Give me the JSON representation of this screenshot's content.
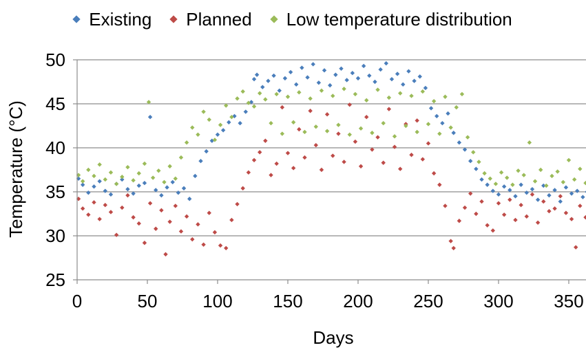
{
  "chart_data": {
    "type": "scatter",
    "title": "",
    "xlabel": "Days",
    "ylabel": "Temperature (°C)",
    "xlim": [
      0,
      365
    ],
    "ylim": [
      25,
      50
    ],
    "x_ticks": [
      0,
      50,
      100,
      150,
      200,
      250,
      300,
      350
    ],
    "y_ticks": [
      25,
      30,
      35,
      40,
      45,
      50
    ],
    "grid": "horizontal",
    "legend_position": "top",
    "series": [
      {
        "name": "Existing",
        "color": "#4a7ebb",
        "points": [
          [
            1,
            36.5
          ],
          [
            4,
            35.8
          ],
          [
            8,
            34.9
          ],
          [
            12,
            35.6
          ],
          [
            16,
            36.2
          ],
          [
            20,
            35.1
          ],
          [
            24,
            34.7
          ],
          [
            28,
            35.9
          ],
          [
            32,
            36.4
          ],
          [
            36,
            35.3
          ],
          [
            40,
            34.8
          ],
          [
            44,
            35.7
          ],
          [
            48,
            36.0
          ],
          [
            52,
            43.5
          ],
          [
            56,
            35.2
          ],
          [
            60,
            34.6
          ],
          [
            64,
            35.5
          ],
          [
            68,
            36.1
          ],
          [
            72,
            34.9
          ],
          [
            76,
            35.4
          ],
          [
            80,
            34.2
          ],
          [
            84,
            36.8
          ],
          [
            88,
            38.5
          ],
          [
            92,
            39.6
          ],
          [
            96,
            40.8
          ],
          [
            100,
            41.5
          ],
          [
            104,
            42.0
          ],
          [
            108,
            42.9
          ],
          [
            112,
            43.6
          ],
          [
            116,
            42.8
          ],
          [
            120,
            44.1
          ],
          [
            124,
            45.2
          ],
          [
            126,
            47.8
          ],
          [
            128,
            48.3
          ],
          [
            132,
            46.9
          ],
          [
            136,
            47.6
          ],
          [
            140,
            48.2
          ],
          [
            144,
            46.5
          ],
          [
            148,
            47.9
          ],
          [
            152,
            48.6
          ],
          [
            156,
            47.2
          ],
          [
            160,
            49.1
          ],
          [
            164,
            48.0
          ],
          [
            168,
            49.5
          ],
          [
            172,
            47.4
          ],
          [
            176,
            48.8
          ],
          [
            180,
            47.1
          ],
          [
            184,
            48.3
          ],
          [
            188,
            49.0
          ],
          [
            192,
            47.7
          ],
          [
            196,
            48.5
          ],
          [
            200,
            47.9
          ],
          [
            204,
            49.3
          ],
          [
            208,
            48.2
          ],
          [
            212,
            47.5
          ],
          [
            216,
            48.9
          ],
          [
            220,
            49.6
          ],
          [
            224,
            47.8
          ],
          [
            228,
            48.4
          ],
          [
            232,
            47.2
          ],
          [
            236,
            48.7
          ],
          [
            240,
            47.6
          ],
          [
            244,
            48.1
          ],
          [
            248,
            46.8
          ],
          [
            252,
            44.5
          ],
          [
            256,
            43.6
          ],
          [
            260,
            42.8
          ],
          [
            264,
            43.9
          ],
          [
            268,
            41.7
          ],
          [
            272,
            40.6
          ],
          [
            276,
            39.8
          ],
          [
            280,
            38.5
          ],
          [
            284,
            37.6
          ],
          [
            288,
            36.4
          ],
          [
            292,
            35.8
          ],
          [
            296,
            35.1
          ],
          [
            300,
            34.7
          ],
          [
            304,
            35.6
          ],
          [
            308,
            35.2
          ],
          [
            312,
            34.5
          ],
          [
            316,
            35.8
          ],
          [
            320,
            34.9
          ],
          [
            324,
            35.3
          ],
          [
            328,
            34.1
          ],
          [
            332,
            35.7
          ],
          [
            336,
            34.6
          ],
          [
            340,
            35.2
          ],
          [
            344,
            33.9
          ],
          [
            348,
            35.5
          ],
          [
            352,
            34.8
          ],
          [
            356,
            35.1
          ],
          [
            360,
            34.4
          ],
          [
            363,
            35.0
          ]
        ]
      },
      {
        "name": "Planned",
        "color": "#be4b48",
        "points": [
          [
            1,
            34.2
          ],
          [
            4,
            33.1
          ],
          [
            8,
            32.4
          ],
          [
            12,
            33.8
          ],
          [
            16,
            31.9
          ],
          [
            20,
            33.5
          ],
          [
            24,
            32.7
          ],
          [
            28,
            30.1
          ],
          [
            32,
            33.2
          ],
          [
            36,
            34.6
          ],
          [
            40,
            32.1
          ],
          [
            44,
            31.4
          ],
          [
            48,
            29.2
          ],
          [
            52,
            33.7
          ],
          [
            56,
            30.8
          ],
          [
            60,
            32.9
          ],
          [
            63,
            27.9
          ],
          [
            66,
            31.6
          ],
          [
            70,
            33.4
          ],
          [
            74,
            30.5
          ],
          [
            78,
            32.2
          ],
          [
            82,
            29.6
          ],
          [
            86,
            31.3
          ],
          [
            90,
            29.0
          ],
          [
            94,
            32.6
          ],
          [
            98,
            30.4
          ],
          [
            102,
            28.9
          ],
          [
            106,
            28.6
          ],
          [
            110,
            31.8
          ],
          [
            114,
            33.6
          ],
          [
            118,
            35.4
          ],
          [
            122,
            37.2
          ],
          [
            126,
            38.6
          ],
          [
            130,
            39.5
          ],
          [
            134,
            40.8
          ],
          [
            138,
            36.9
          ],
          [
            142,
            38.2
          ],
          [
            146,
            44.6
          ],
          [
            150,
            39.4
          ],
          [
            154,
            37.7
          ],
          [
            158,
            42.1
          ],
          [
            162,
            38.9
          ],
          [
            166,
            44.2
          ],
          [
            170,
            40.3
          ],
          [
            174,
            37.5
          ],
          [
            178,
            43.8
          ],
          [
            182,
            39.1
          ],
          [
            186,
            41.6
          ],
          [
            190,
            38.4
          ],
          [
            194,
            44.9
          ],
          [
            198,
            40.7
          ],
          [
            202,
            37.9
          ],
          [
            206,
            43.5
          ],
          [
            210,
            39.8
          ],
          [
            214,
            41.2
          ],
          [
            218,
            38.3
          ],
          [
            222,
            44.4
          ],
          [
            226,
            40.1
          ],
          [
            230,
            37.6
          ],
          [
            234,
            42.7
          ],
          [
            238,
            39.2
          ],
          [
            242,
            43.1
          ],
          [
            246,
            38.7
          ],
          [
            250,
            40.5
          ],
          [
            254,
            37.1
          ],
          [
            258,
            35.8
          ],
          [
            262,
            33.4
          ],
          [
            266,
            29.4
          ],
          [
            268,
            28.6
          ],
          [
            272,
            31.7
          ],
          [
            276,
            33.2
          ],
          [
            280,
            34.8
          ],
          [
            284,
            32.5
          ],
          [
            288,
            33.9
          ],
          [
            292,
            31.2
          ],
          [
            296,
            30.6
          ],
          [
            300,
            33.7
          ],
          [
            304,
            32.4
          ],
          [
            308,
            34.1
          ],
          [
            312,
            31.8
          ],
          [
            316,
            33.5
          ],
          [
            320,
            32.2
          ],
          [
            324,
            34.7
          ],
          [
            328,
            31.5
          ],
          [
            332,
            33.9
          ],
          [
            336,
            32.8
          ],
          [
            340,
            33.1
          ],
          [
            344,
            34.5
          ],
          [
            348,
            32.6
          ],
          [
            352,
            31.9
          ],
          [
            355,
            28.7
          ],
          [
            358,
            33.4
          ],
          [
            362,
            32.1
          ]
        ]
      },
      {
        "name": "Low temperature distribution",
        "color": "#9bbb59",
        "points": [
          [
            1,
            36.9
          ],
          [
            4,
            36.2
          ],
          [
            8,
            37.5
          ],
          [
            12,
            36.8
          ],
          [
            16,
            38.1
          ],
          [
            20,
            36.4
          ],
          [
            24,
            37.2
          ],
          [
            28,
            35.9
          ],
          [
            32,
            36.7
          ],
          [
            36,
            37.8
          ],
          [
            40,
            36.3
          ],
          [
            44,
            37.1
          ],
          [
            48,
            38.2
          ],
          [
            51,
            45.2
          ],
          [
            54,
            36.6
          ],
          [
            58,
            37.4
          ],
          [
            62,
            36.1
          ],
          [
            66,
            37.9
          ],
          [
            70,
            36.5
          ],
          [
            74,
            38.9
          ],
          [
            78,
            40.6
          ],
          [
            82,
            42.3
          ],
          [
            86,
            41.5
          ],
          [
            90,
            44.1
          ],
          [
            94,
            43.2
          ],
          [
            98,
            40.9
          ],
          [
            102,
            42.6
          ],
          [
            106,
            44.8
          ],
          [
            110,
            43.5
          ],
          [
            114,
            45.6
          ],
          [
            118,
            46.4
          ],
          [
            122,
            45.1
          ],
          [
            126,
            44.7
          ],
          [
            130,
            46.2
          ],
          [
            134,
            45.5
          ],
          [
            138,
            42.8
          ],
          [
            142,
            46.1
          ],
          [
            146,
            41.6
          ],
          [
            150,
            45.8
          ],
          [
            154,
            42.9
          ],
          [
            158,
            46.3
          ],
          [
            162,
            41.8
          ],
          [
            166,
            45.6
          ],
          [
            170,
            42.4
          ],
          [
            174,
            46.5
          ],
          [
            178,
            41.9
          ],
          [
            182,
            45.9
          ],
          [
            186,
            42.6
          ],
          [
            190,
            46.7
          ],
          [
            194,
            41.5
          ],
          [
            198,
            46.1
          ],
          [
            202,
            42.2
          ],
          [
            206,
            45.4
          ],
          [
            210,
            41.7
          ],
          [
            214,
            46.6
          ],
          [
            218,
            42.8
          ],
          [
            222,
            45.7
          ],
          [
            226,
            41.3
          ],
          [
            230,
            46.2
          ],
          [
            234,
            42.5
          ],
          [
            238,
            45.9
          ],
          [
            242,
            41.8
          ],
          [
            246,
            46.4
          ],
          [
            250,
            42.7
          ],
          [
            254,
            45.3
          ],
          [
            258,
            41.6
          ],
          [
            262,
            45.8
          ],
          [
            266,
            42.3
          ],
          [
            270,
            44.6
          ],
          [
            274,
            46.1
          ],
          [
            278,
            41.2
          ],
          [
            282,
            39.5
          ],
          [
            286,
            38.4
          ],
          [
            290,
            37.1
          ],
          [
            294,
            36.5
          ],
          [
            298,
            35.9
          ],
          [
            302,
            37.2
          ],
          [
            306,
            36.6
          ],
          [
            310,
            35.8
          ],
          [
            314,
            37.4
          ],
          [
            318,
            36.9
          ],
          [
            322,
            40.6
          ],
          [
            326,
            36.2
          ],
          [
            330,
            37.5
          ],
          [
            334,
            35.7
          ],
          [
            338,
            36.8
          ],
          [
            342,
            37.3
          ],
          [
            346,
            36.1
          ],
          [
            350,
            38.6
          ],
          [
            354,
            36.4
          ],
          [
            358,
            37.6
          ],
          [
            362,
            36.0
          ]
        ]
      }
    ]
  }
}
